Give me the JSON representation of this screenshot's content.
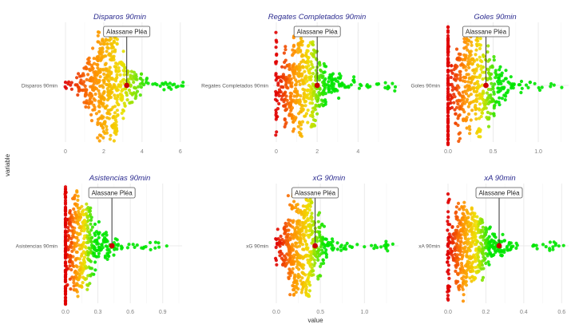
{
  "chart_data": {
    "type": "scatter",
    "subtype": "beeswarm-facets",
    "xlabel": "value",
    "ylabel": "variable",
    "highlight_player": "Alassane Pléa",
    "color_scale": [
      "#e00000",
      "#ff8c00",
      "#f0e000",
      "#00e600"
    ],
    "highlight_color": "#cc0000",
    "title_color": "#2b2b8f",
    "facets": [
      {
        "title": "Disparos 90min",
        "variable": "Disparos 90min",
        "xlim": [
          0,
          6.3
        ],
        "ticks": [
          0,
          2,
          4,
          6
        ],
        "tick_labels": [
          "0",
          "2",
          "4",
          "6"
        ],
        "highlight_value": 3.2,
        "distribution": {
          "mode": 2.0,
          "spread": 0.75,
          "min": 0,
          "max": 6.2,
          "zero_pile": false,
          "n": 520
        }
      },
      {
        "title": "Regates Completados 90min",
        "variable": "Regates Completados 90min",
        "xlim": [
          0,
          5.9
        ],
        "ticks": [
          0,
          2,
          4
        ],
        "tick_labels": [
          "0",
          "2",
          "4"
        ],
        "highlight_value": 2.0,
        "distribution": {
          "mode": 1.1,
          "spread": 0.8,
          "min": 0,
          "max": 5.8,
          "zero_pile": false,
          "n": 520
        }
      },
      {
        "title": "Goles 90min",
        "variable": "Goles 90min",
        "xlim": [
          0,
          1.3
        ],
        "ticks": [
          0.0,
          0.5,
          1.0
        ],
        "tick_labels": [
          "0.0",
          "0.5",
          "1.0"
        ],
        "highlight_value": 0.42,
        "distribution": {
          "mode": 0.25,
          "spread": 0.17,
          "min": 0,
          "max": 1.28,
          "zero_pile": true,
          "n": 520
        }
      },
      {
        "title": "Asistencias 90min",
        "variable": "Asistencias 90min",
        "xlim": [
          0,
          1.05
        ],
        "ticks": [
          0.0,
          0.3,
          0.6,
          0.9
        ],
        "tick_labels": [
          "0.0",
          "0.3",
          "0.6",
          "0.9"
        ],
        "highlight_value": 0.43,
        "distribution": {
          "mode": 0.12,
          "spread": 0.12,
          "min": 0,
          "max": 1.05,
          "zero_pile": true,
          "n": 520
        }
      },
      {
        "title": "xG 90min",
        "variable": "xG 90min",
        "xlim": [
          0,
          1.35
        ],
        "ticks": [
          0.0,
          0.5,
          1.0
        ],
        "tick_labels": [
          "0.0",
          "0.5",
          "1.0"
        ],
        "highlight_value": 0.44,
        "distribution": {
          "mode": 0.25,
          "spread": 0.13,
          "min": 0,
          "max": 1.35,
          "zero_pile": false,
          "n": 520
        }
      },
      {
        "title": "xA 90min",
        "variable": "xA 90min",
        "xlim": [
          0,
          0.62
        ],
        "ticks": [
          0.0,
          0.2,
          0.4,
          0.6
        ],
        "tick_labels": [
          "0.0",
          "0.2",
          "0.4",
          "0.6"
        ],
        "highlight_value": 0.27,
        "distribution": {
          "mode": 0.1,
          "spread": 0.075,
          "min": 0,
          "max": 0.62,
          "zero_pile": false,
          "n": 520
        }
      }
    ]
  }
}
